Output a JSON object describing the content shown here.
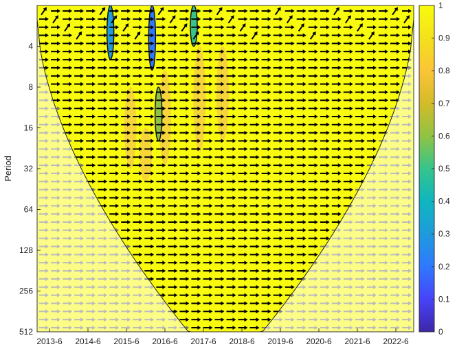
{
  "chart_data": {
    "type": "heatmap",
    "title": "",
    "xlabel": "",
    "ylabel": "Period",
    "x_ticks": [
      "2013-6",
      "2014-6",
      "2015-6",
      "2016-6",
      "2017-6",
      "2018-6",
      "2019-6",
      "2020-6",
      "2021-6",
      "2022-6"
    ],
    "y_ticks": [
      4,
      8,
      16,
      32,
      64,
      128,
      256,
      512
    ],
    "y_scale": "log2",
    "y_reversed": true,
    "ylim": [
      2,
      512
    ],
    "colorbar": {
      "ticks": [
        0,
        0.1,
        0.2,
        0.3,
        0.4,
        0.5,
        0.6,
        0.7,
        0.8,
        0.9,
        1
      ],
      "range": [
        0,
        1
      ],
      "colormap": "parula",
      "colors": [
        "#3e26a8",
        "#4743f8",
        "#2f79ff",
        "#1e9bdb",
        "#0fb6c0",
        "#36c48b",
        "#8fc344",
        "#d4bb29",
        "#fbc438",
        "#f3e11c",
        "#f9fb0e"
      ]
    },
    "background_value": 1,
    "low_coherence_regions": [
      {
        "x": "2015-1",
        "period_range": [
          2,
          5
        ],
        "value": 0.3
      },
      {
        "x": "2016-2",
        "period_range": [
          2,
          6
        ],
        "value": 0.2
      },
      {
        "x": "2016-4",
        "period_range": [
          8,
          20
        ],
        "value": 0.6
      },
      {
        "x": "2017-3",
        "period_range": [
          2,
          4
        ],
        "value": 0.5
      }
    ],
    "cone_of_influence": "shaded lighter region outside a U-shaped boundary",
    "phase_arrows": "predominantly pointing right (in-phase); arrows outside the cone are gray"
  }
}
